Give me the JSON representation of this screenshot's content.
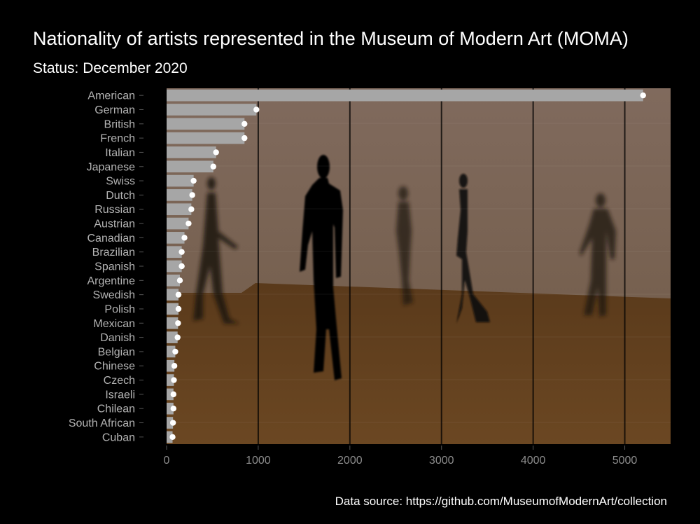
{
  "title": "Nationality of artists represented in the Museum of Modern Art (MOMA)",
  "subtitle": "Status: December 2020",
  "caption": "Data source: https://github.com/MuseumofModernArt/collection",
  "colors": {
    "background": "#000000",
    "bar": "#a6a6a6",
    "point": "#ffffff",
    "wall": "#7d6658",
    "floor": "#5e3d1d",
    "text": "#ffffff",
    "axis_text": "#8c8c8c"
  },
  "chart_data": {
    "type": "bar",
    "orientation": "horizontal",
    "title": "Nationality of artists represented in the Museum of Modern Art (MOMA)",
    "subtitle": "Status: December 2020",
    "xlabel": "",
    "ylabel": "",
    "xlim": [
      0,
      5500
    ],
    "xticks": [
      0,
      1000,
      2000,
      3000,
      4000,
      5000
    ],
    "grid": true,
    "legend": "none",
    "background_image": "gallery-with-walking-figure-sculptures",
    "categories": [
      "American",
      "German",
      "British",
      "French",
      "Italian",
      "Japanese",
      "Swiss",
      "Dutch",
      "Russian",
      "Austrian",
      "Canadian",
      "Brazilian",
      "Spanish",
      "Argentine",
      "Swedish",
      "Polish",
      "Mexican",
      "Danish",
      "Belgian",
      "Chinese",
      "Czech",
      "Israeli",
      "Chilean",
      "South African",
      "Cuban"
    ],
    "values": [
      5200,
      980,
      850,
      850,
      540,
      510,
      295,
      280,
      270,
      240,
      195,
      165,
      165,
      145,
      130,
      130,
      125,
      120,
      95,
      85,
      80,
      75,
      75,
      70,
      65
    ]
  }
}
